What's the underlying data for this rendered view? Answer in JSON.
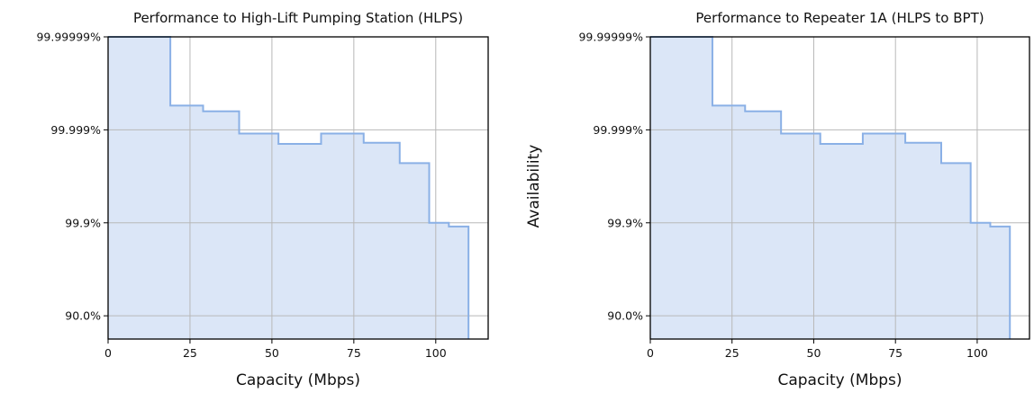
{
  "chart_data": [
    {
      "type": "area",
      "step": true,
      "title": "Performance to High-Lift Pumping Station (HLPS)",
      "xlabel": "Capacity (Mbps)",
      "ylabel": "",
      "xlim": [
        0,
        116
      ],
      "xticks": [
        0,
        25,
        50,
        75,
        100
      ],
      "yscale": "log-nines",
      "yticks": [
        "99.99999%",
        "99.999%",
        "99.9%",
        "90.0%"
      ],
      "grid": true,
      "fill_color": "#dbe6f7",
      "line_color": "#8ab0e6",
      "series": [
        {
          "x": [
            0,
            19,
            19,
            29,
            29,
            40,
            40,
            52,
            52,
            65,
            65,
            78,
            78,
            89,
            89,
            98,
            98,
            104,
            104,
            110,
            110
          ],
          "y": [
            99.99999,
            99.99999,
            99.9997,
            99.9997,
            99.9996,
            99.9996,
            99.9988,
            99.9988,
            99.998,
            99.998,
            99.9988,
            99.9988,
            99.9981,
            99.9981,
            99.9948,
            99.9948,
            99.9,
            99.9,
            99.88,
            99.88,
            80.0
          ]
        }
      ]
    },
    {
      "type": "area",
      "step": true,
      "title": "Performance to Repeater 1A (HLPS to BPT)",
      "xlabel": "Capacity (Mbps)",
      "ylabel": "Availability",
      "xlim": [
        0,
        116
      ],
      "xticks": [
        0,
        25,
        50,
        75,
        100
      ],
      "yscale": "log-nines",
      "yticks": [
        "99.99999%",
        "99.999%",
        "99.9%",
        "90.0%"
      ],
      "grid": true,
      "fill_color": "#dbe6f7",
      "line_color": "#8ab0e6",
      "series": [
        {
          "x": [
            0,
            19,
            19,
            29,
            29,
            40,
            40,
            52,
            52,
            65,
            65,
            78,
            78,
            89,
            89,
            98,
            98,
            104,
            104,
            110,
            110
          ],
          "y": [
            99.99999,
            99.99999,
            99.9997,
            99.9997,
            99.9996,
            99.9996,
            99.9988,
            99.9988,
            99.998,
            99.998,
            99.9988,
            99.9988,
            99.9981,
            99.9981,
            99.9948,
            99.9948,
            99.9,
            99.9,
            99.88,
            99.88,
            80.0
          ]
        }
      ]
    }
  ]
}
